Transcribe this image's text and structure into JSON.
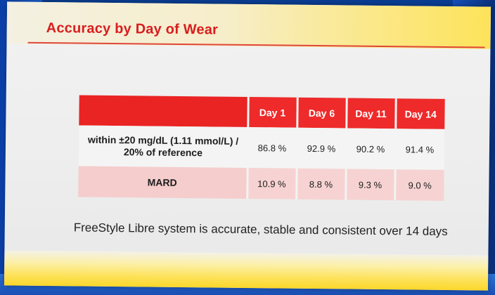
{
  "slide": {
    "title": "Accuracy by Day of Wear",
    "footnote": "FreeStyle Libre system is accurate, stable and consistent over 14 days"
  },
  "table": {
    "columns": [
      "Day 1",
      "Day 6",
      "Day 11",
      "Day 14"
    ],
    "rows": [
      {
        "label_line1": "within ±20 mg/dL (1.11 mmol/L) /",
        "label_line2": "20% of reference",
        "values": [
          "86.8 %",
          "92.9 %",
          "90.2 %",
          "91.4 %"
        ]
      },
      {
        "label": "MARD",
        "values": [
          "10.9 %",
          "8.8 %",
          "9.3 %",
          "9.0 %"
        ]
      }
    ]
  },
  "colors": {
    "accent_red": "#ee2a2a",
    "mard_row": "#f6d3d2",
    "band_yellow": "#fde35a",
    "screen_blue": "#0a3d92"
  }
}
